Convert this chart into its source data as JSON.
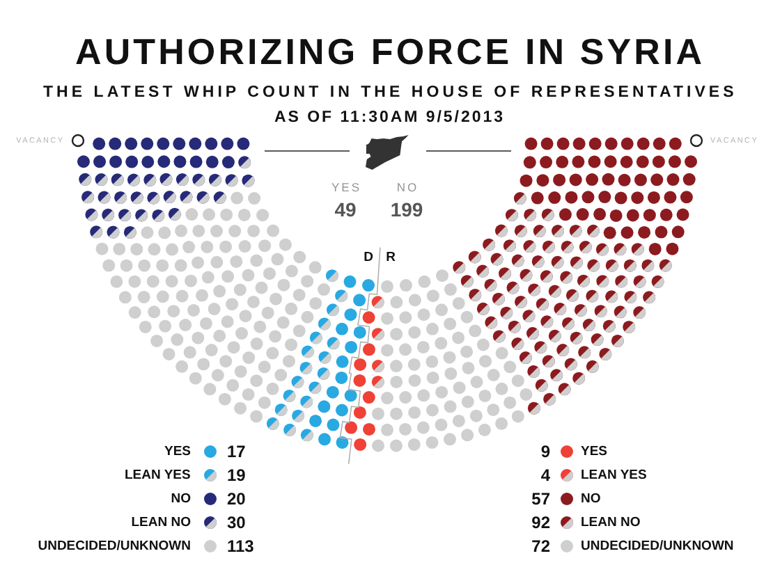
{
  "chart_data": {
    "type": "other",
    "title": "AUTHORIZING FORCE IN SYRIA",
    "subtitle": "THE LATEST WHIP COUNT IN THE HOUSE OF REPRESENTATIVES\nAS OF 11:30AM 9/5/2013",
    "categories": [
      "YES",
      "LEAN YES",
      "NO",
      "LEAN NO",
      "UNDECIDED/UNKNOWN",
      "VACANCY"
    ],
    "series": [
      {
        "name": "D",
        "colors": [
          "#29a9e1",
          "#29a9e1",
          "#262a78",
          "#262a78",
          "#cfcfcf",
          "#ffffff"
        ],
        "values": [
          17,
          19,
          20,
          30,
          113,
          null
        ],
        "value_labels": [
          "17",
          "19",
          "20",
          "30",
          "113",
          null
        ]
      },
      {
        "name": "R",
        "colors": [
          "#ef4136",
          "#ef4136",
          "#8c1b1f",
          "#8c1b1f",
          "#cfcfcf",
          "#ffffff"
        ],
        "values": [
          9,
          4,
          57,
          92,
          72,
          null
        ],
        "value_labels": [
          "9",
          "4",
          "57",
          "92",
          "72",
          null
        ]
      }
    ],
    "annotations": [
      "YES",
      "49",
      "NO",
      "199"
    ]
  }
}
